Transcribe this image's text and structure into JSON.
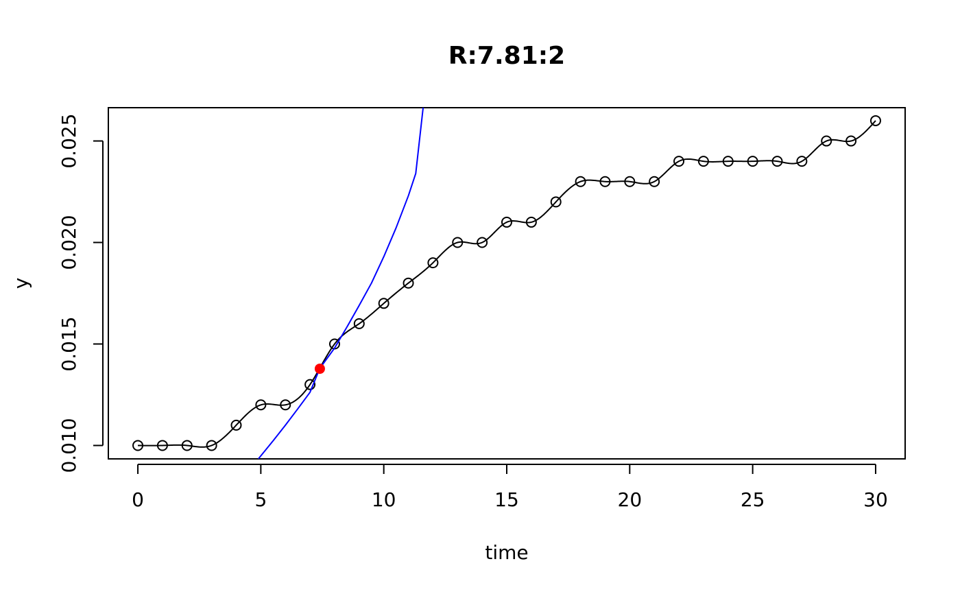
{
  "chart_data": {
    "type": "scatter",
    "title": "R:7.81:2",
    "xlabel": "time",
    "ylabel": "y",
    "xlim": [
      -1.2,
      31.2
    ],
    "ylim": [
      0.00934,
      0.02664
    ],
    "xticks": [
      0,
      5,
      10,
      15,
      20,
      25,
      30
    ],
    "xtick_labels": [
      "0",
      "5",
      "10",
      "15",
      "20",
      "25",
      "30"
    ],
    "yticks": [
      0.01,
      0.015,
      0.02,
      0.025
    ],
    "ytick_labels": [
      "0.010",
      "0.015",
      "0.020",
      "0.025"
    ],
    "grid": false,
    "series": [
      {
        "kind": "points-with-smooth-line",
        "color": "#000000",
        "x": [
          0,
          1,
          2,
          3,
          4,
          5,
          6,
          7,
          8,
          9,
          10,
          11,
          12,
          13,
          14,
          15,
          16,
          17,
          18,
          19,
          20,
          21,
          22,
          23,
          24,
          25,
          26,
          27,
          28,
          29,
          30
        ],
        "y": [
          0.01,
          0.01,
          0.01,
          0.01,
          0.011,
          0.012,
          0.012,
          0.013,
          0.015,
          0.016,
          0.017,
          0.018,
          0.019,
          0.02,
          0.02,
          0.021,
          0.021,
          0.022,
          0.023,
          0.023,
          0.023,
          0.023,
          0.024,
          0.024,
          0.024,
          0.024,
          0.024,
          0.024,
          0.025,
          0.025,
          0.026
        ]
      },
      {
        "kind": "line",
        "color": "#0000ff",
        "x": [
          4.9,
          5.5,
          6.0,
          6.5,
          7.0,
          7.4,
          8.0,
          8.5,
          9.0,
          9.5,
          10.0,
          10.5,
          11.0,
          11.3,
          11.6
        ],
        "y": [
          0.00934,
          0.01023,
          0.011,
          0.0118,
          0.01262,
          0.0138,
          0.0148,
          0.01583,
          0.0169,
          0.018,
          0.0193,
          0.02072,
          0.0223,
          0.0234,
          0.02664
        ]
      },
      {
        "kind": "point",
        "color": "#ff0000",
        "x": [
          7.4
        ],
        "y": [
          0.01378
        ]
      }
    ]
  }
}
